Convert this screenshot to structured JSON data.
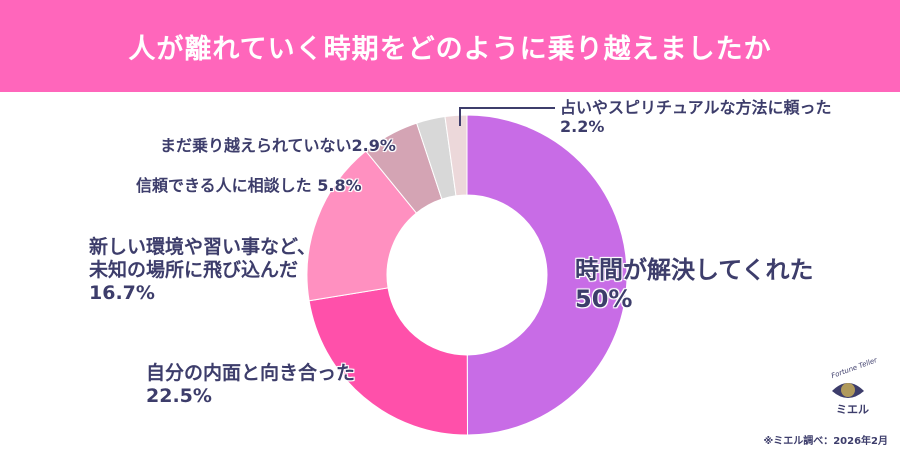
{
  "header": {
    "title": "人が離れていく時期をどのように乗り越えましたか",
    "background": "#ff66bb"
  },
  "chart_data": {
    "type": "pie",
    "variant": "donut",
    "title": "人が離れていく時期をどのように乗り越えましたか",
    "start_angle": "12 o'clock, clockwise",
    "categories": [
      "時間が解決してくれた",
      "自分の内面と向き合った",
      "新しい環境や習い事など、未知の場所に飛び込んだ",
      "信頼できる人に相談した",
      "まだ乗り越えられていない",
      "占いやスピリチュアルな方法に頼った"
    ],
    "values": [
      50,
      22.5,
      16.7,
      5.8,
      2.9,
      2.2
    ],
    "colors": [
      "#c86ce6",
      "#ff50aa",
      "#ff90c0",
      "#d4a4b4",
      "#d8d8d8",
      "#ecd8da"
    ],
    "unit": "%"
  },
  "labels": {
    "time": {
      "text": "時間が解決してくれた",
      "value": "50%"
    },
    "inner": {
      "text": "自分の内面と向き合った",
      "value": "22.5%"
    },
    "new_env": {
      "line1": "新しい環境や習い事など、",
      "line2": "未知の場所に飛び込んだ",
      "value": "16.7%"
    },
    "consult": {
      "text": "信頼できる人に相談した 5.8%"
    },
    "not_yet": {
      "text": "まだ乗り越えられていない2.9%"
    },
    "spiritual": {
      "text": "占いやスピリチュアルな方法に頼った",
      "value": "2.2%"
    }
  },
  "logo": {
    "arc_text": "Fortune Teller",
    "name": "ミエル"
  },
  "source": "※ミエル調べ：2026年2月"
}
